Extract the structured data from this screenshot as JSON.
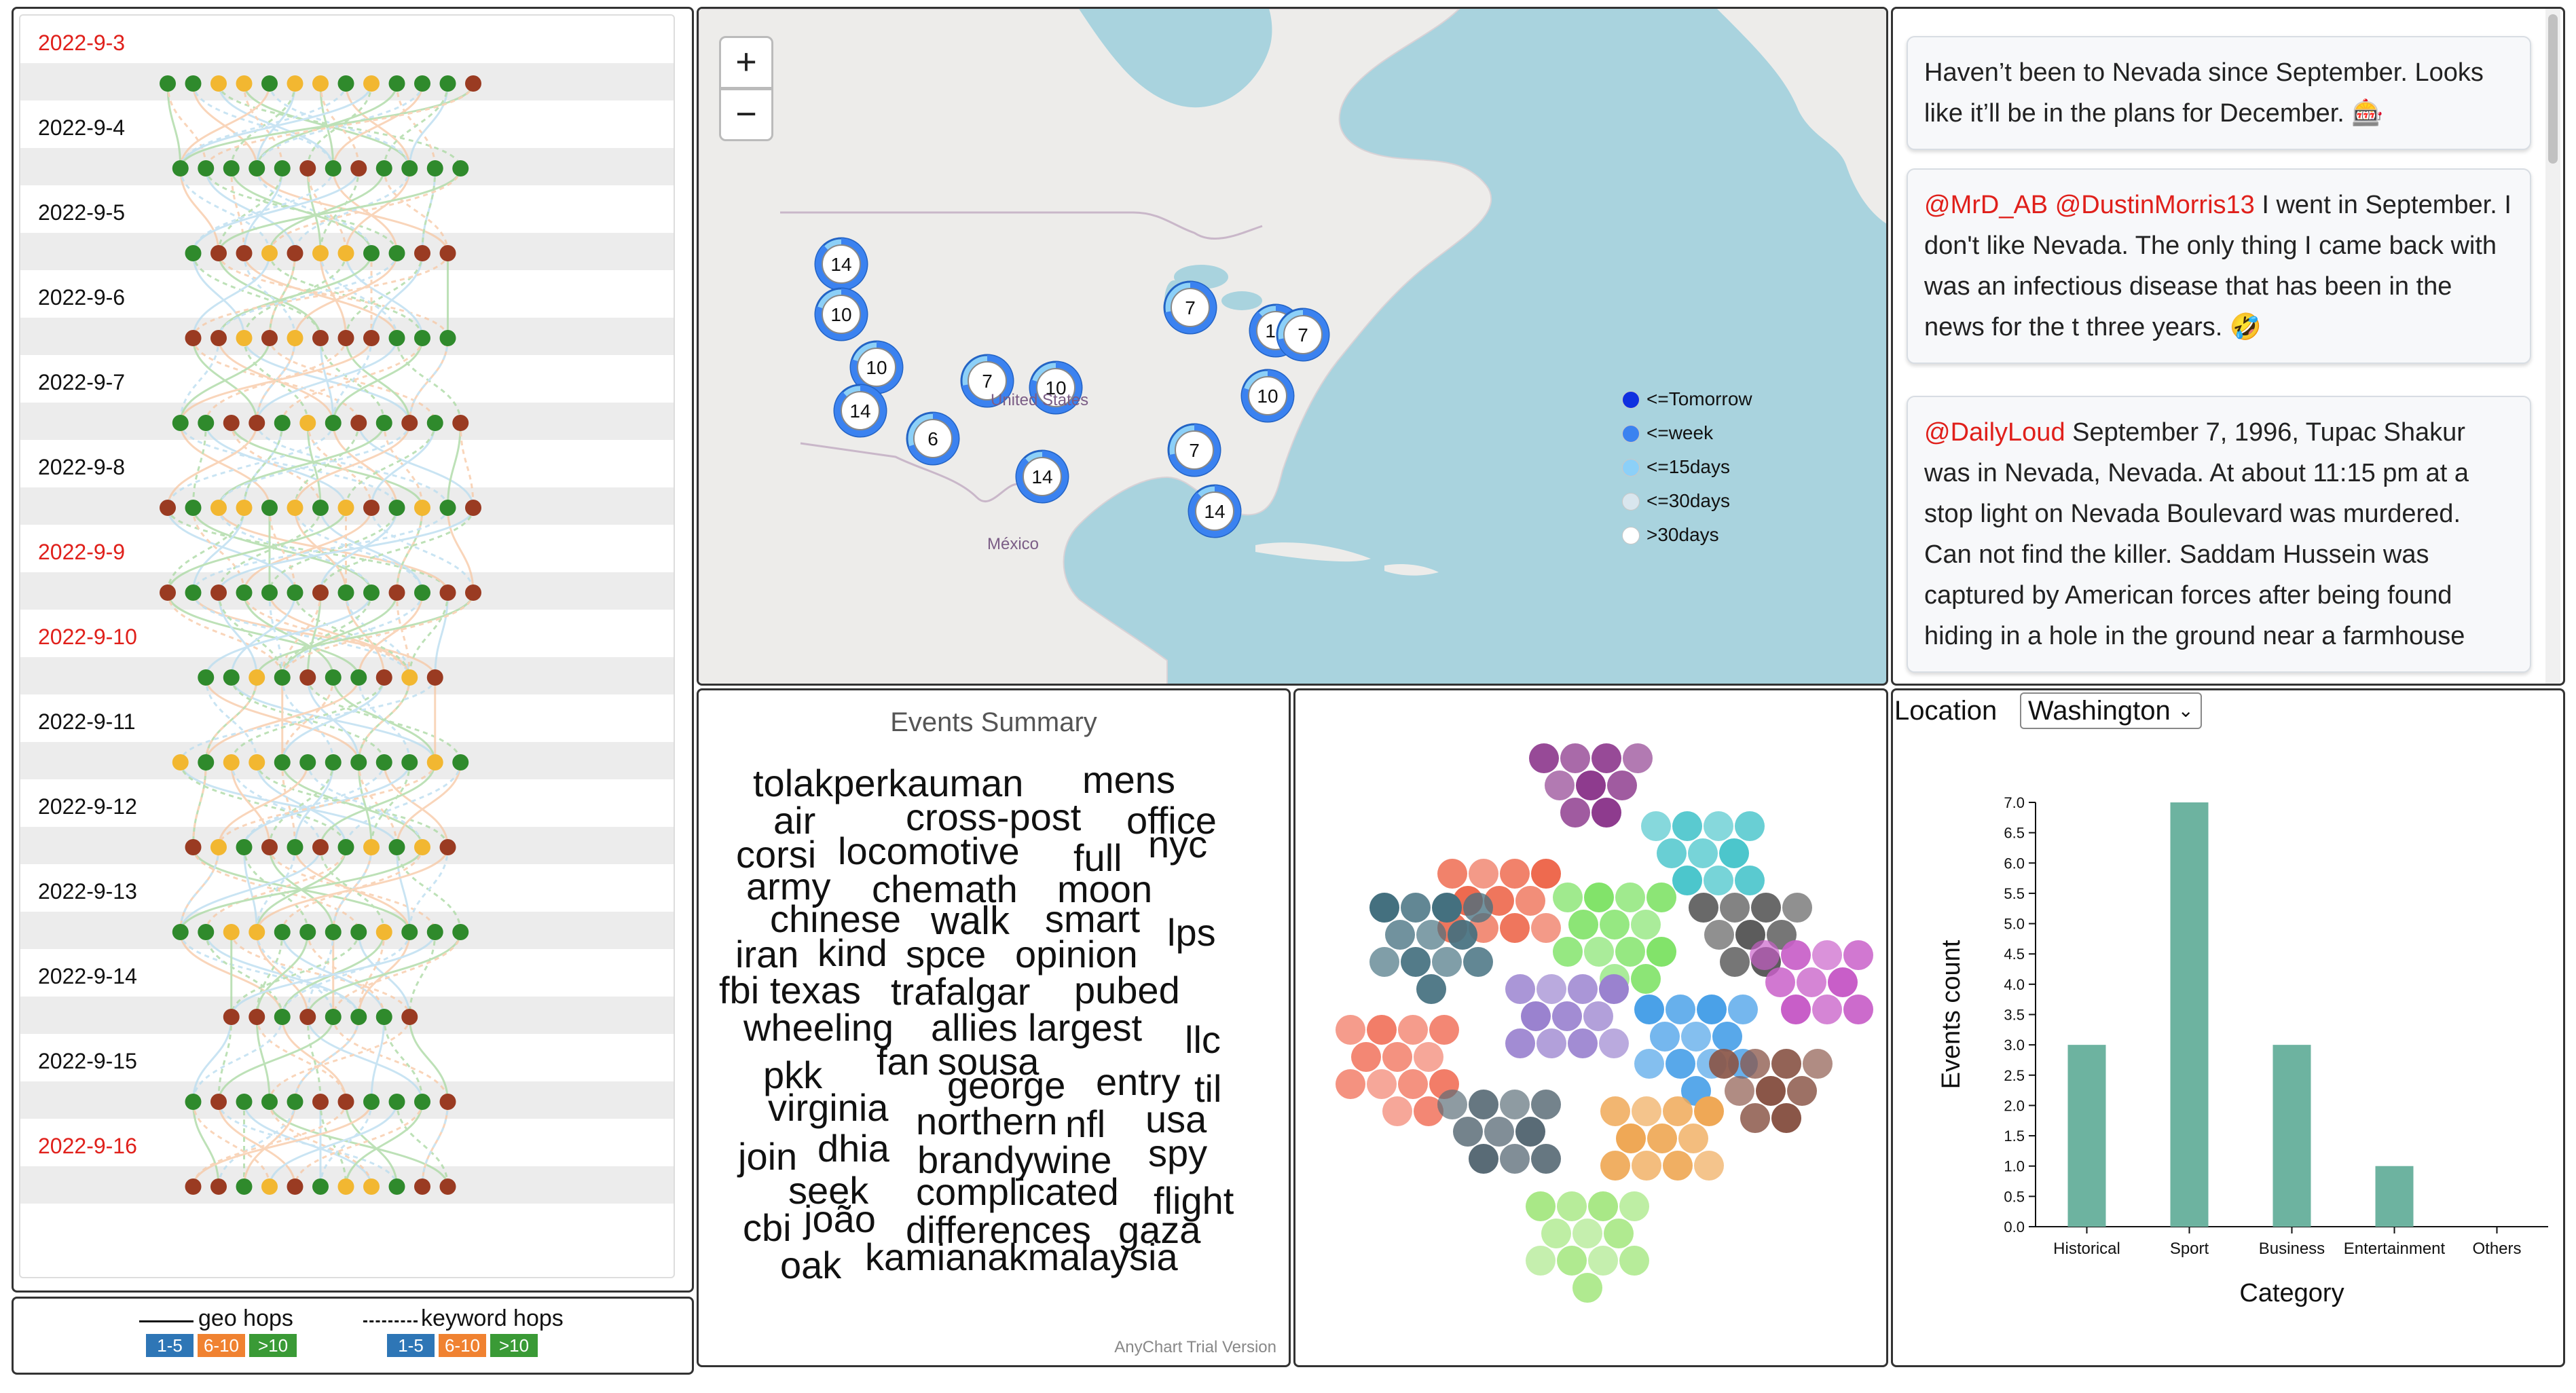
{
  "timeline": {
    "rows": [
      {
        "date": "2022-9-3",
        "red": true,
        "dots": [
          "g",
          "g",
          "y",
          "y",
          "g",
          "y",
          "y",
          "g",
          "y",
          "g",
          "g",
          "g",
          "r"
        ]
      },
      {
        "date": "2022-9-4",
        "red": false,
        "dots": [
          "g",
          "g",
          "g",
          "g",
          "g",
          "r",
          "g",
          "r",
          "g",
          "g",
          "g",
          "g"
        ]
      },
      {
        "date": "2022-9-5",
        "red": false,
        "dots": [
          "g",
          "r",
          "r",
          "y",
          "r",
          "y",
          "y",
          "g",
          "g",
          "r",
          "r"
        ]
      },
      {
        "date": "2022-9-6",
        "red": false,
        "dots": [
          "r",
          "r",
          "y",
          "r",
          "y",
          "r",
          "r",
          "r",
          "g",
          "g",
          "g"
        ]
      },
      {
        "date": "2022-9-7",
        "red": false,
        "dots": [
          "g",
          "g",
          "r",
          "r",
          "g",
          "y",
          "g",
          "r",
          "g",
          "r",
          "g",
          "r"
        ]
      },
      {
        "date": "2022-9-8",
        "red": false,
        "dots": [
          "r",
          "g",
          "y",
          "y",
          "g",
          "y",
          "g",
          "y",
          "r",
          "g",
          "y",
          "g",
          "r"
        ]
      },
      {
        "date": "2022-9-9",
        "red": true,
        "dots": [
          "r",
          "g",
          "r",
          "g",
          "g",
          "g",
          "r",
          "g",
          "g",
          "r",
          "g",
          "r",
          "r"
        ]
      },
      {
        "date": "2022-9-10",
        "red": true,
        "dots": [
          "g",
          "g",
          "y",
          "g",
          "r",
          "g",
          "g",
          "r",
          "y",
          "r"
        ]
      },
      {
        "date": "2022-9-11",
        "red": false,
        "dots": [
          "y",
          "g",
          "y",
          "y",
          "g",
          "g",
          "g",
          "g",
          "g",
          "g",
          "y",
          "g"
        ]
      },
      {
        "date": "2022-9-12",
        "red": false,
        "dots": [
          "r",
          "y",
          "g",
          "r",
          "g",
          "r",
          "g",
          "y",
          "g",
          "y",
          "r"
        ]
      },
      {
        "date": "2022-9-13",
        "red": false,
        "dots": [
          "g",
          "g",
          "y",
          "y",
          "g",
          "g",
          "g",
          "g",
          "y",
          "g",
          "g",
          "g"
        ]
      },
      {
        "date": "2022-9-14",
        "red": false,
        "dots": [
          "r",
          "r",
          "g",
          "r",
          "g",
          "g",
          "g",
          "r"
        ]
      },
      {
        "date": "2022-9-15",
        "red": false,
        "dots": [
          "g",
          "r",
          "g",
          "g",
          "g",
          "r",
          "r",
          "g",
          "g",
          "g",
          "r"
        ]
      },
      {
        "date": "2022-9-16",
        "red": true,
        "dots": [
          "r",
          "r",
          "g",
          "y",
          "r",
          "g",
          "y",
          "y",
          "g",
          "r",
          "r"
        ]
      }
    ]
  },
  "hops_legend": {
    "geo_label": "geo hops",
    "keyword_label": "keyword hops",
    "ranges": [
      "1-5",
      "6-10",
      ">10"
    ],
    "colors": [
      "#2e76b6",
      "#f08231",
      "#3a9a36"
    ]
  },
  "map": {
    "zoom_in": "+",
    "zoom_out": "−",
    "labels": {
      "us": "United States",
      "mexico": "México"
    },
    "clusters": [
      {
        "count": "14",
        "fill": 0.88
      },
      {
        "count": "10",
        "fill": 0.8
      },
      {
        "count": "10",
        "fill": 0.8
      },
      {
        "count": "14",
        "fill": 0.88
      },
      {
        "count": "6",
        "fill": 0.7
      },
      {
        "count": "7",
        "fill": 0.72
      },
      {
        "count": "10",
        "fill": 0.8
      },
      {
        "count": "14",
        "fill": 0.88
      },
      {
        "count": "7",
        "fill": 0.72
      },
      {
        "count": "14",
        "fill": 0.88
      },
      {
        "count": "7",
        "fill": 0.72
      },
      {
        "count": "10",
        "fill": 0.8
      },
      {
        "count": "7",
        "fill": 0.72
      },
      {
        "count": "14",
        "fill": 0.88
      }
    ],
    "legend": [
      {
        "label": "<=Tomorrow",
        "color": "#1030e0"
      },
      {
        "label": "<=week",
        "color": "#3b82f0"
      },
      {
        "label": "<=15days",
        "color": "#8cd0f8"
      },
      {
        "label": "<=30days",
        "color": "#d9e6ee"
      },
      {
        "label": ">30days",
        "color": "#ffffff"
      }
    ]
  },
  "tweets": [
    {
      "mention": "",
      "text": "Haven’t been to Nevada since September. Looks like it’ll be in the plans for December. 🎰"
    },
    {
      "mention": "@MrD_AB @DustinMorris13",
      "text": " I went in September. I don't like Nevada. The only thing I came back with was an infectious disease that has been in the news for the t three years. 🤣"
    },
    {
      "mention": "@DailyLoud",
      "text": " September 7, 1996, Tupac Shakur was in Nevada, Nevada. At about 11:15 pm at a stop light on Nevada Boulevard was murdered. Can not find the killer. Saddam Hussein was captured by American forces after being found hiding in a hole in the ground near a farmhouse"
    }
  ],
  "cloud": {
    "title": "Events Summary",
    "watermark": "AnyChart Trial Version",
    "words": [
      "tolakperkauman",
      "mens",
      "air",
      "cross-post",
      "office",
      "corsi",
      "locomotive",
      "full",
      "nyc",
      "army",
      "chemath",
      "moon",
      "chinese",
      "walk",
      "smart",
      "lps",
      "iran",
      "kind",
      "spce",
      "opinion",
      "fbi",
      "texas",
      "trafalgar",
      "pubed",
      "wheeling",
      "allies",
      "largest",
      "llc",
      "pkk",
      "fan",
      "sousa",
      "george",
      "entry",
      "til",
      "virginia",
      "northern",
      "nfl",
      "usa",
      "join",
      "dhia",
      "brandywine",
      "spy",
      "seek",
      "complicated",
      "flight",
      "cbi",
      "joão",
      "differences",
      "gaza",
      "oak",
      "kamianakmalaysia"
    ]
  },
  "bubbles": {
    "groups": [
      {
        "color": "#8e3b8e"
      },
      {
        "color": "#4cc6cc"
      },
      {
        "color": "#ee6a4f"
      },
      {
        "color": "#44707f"
      },
      {
        "color": "#82e36a"
      },
      {
        "color": "#5c5c5c"
      },
      {
        "color": "#c85ec8"
      },
      {
        "color": "#9a82cf"
      },
      {
        "color": "#4aa1e8"
      },
      {
        "color": "#f27d68"
      },
      {
        "color": "#8a5648"
      },
      {
        "color": "#596b76"
      },
      {
        "color": "#efa856"
      },
      {
        "color": "#a9e887"
      }
    ]
  },
  "bar_panel": {
    "location_label": "Location",
    "location_value": "Washington"
  },
  "chart_data": {
    "type": "bar",
    "categories": [
      "Historical",
      "Sport",
      "Business",
      "Entertainment",
      "Others"
    ],
    "values": [
      3,
      7,
      3,
      1,
      0
    ],
    "xlabel": "Category",
    "ylabel": "Events count",
    "ylim": [
      0,
      7
    ],
    "yticks": [
      "0.0",
      "0.5",
      "1.0",
      "1.5",
      "2.0",
      "2.5",
      "3.0",
      "3.5",
      "4.0",
      "4.5",
      "5.0",
      "5.5",
      "6.0",
      "6.5",
      "7.0"
    ],
    "bar_color": "#6db3a0"
  }
}
